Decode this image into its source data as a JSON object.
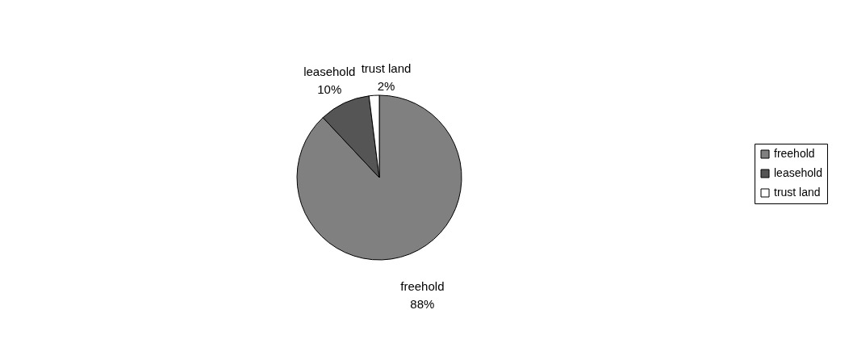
{
  "chart_data": {
    "type": "pie",
    "categories": [
      "freehold",
      "leasehold",
      "trust land"
    ],
    "values": [
      88,
      10,
      2
    ],
    "colors": [
      "#808080",
      "#555555",
      "#ffffff"
    ],
    "value_labels": [
      "88%",
      "10%",
      "2%"
    ],
    "legend": "right"
  }
}
